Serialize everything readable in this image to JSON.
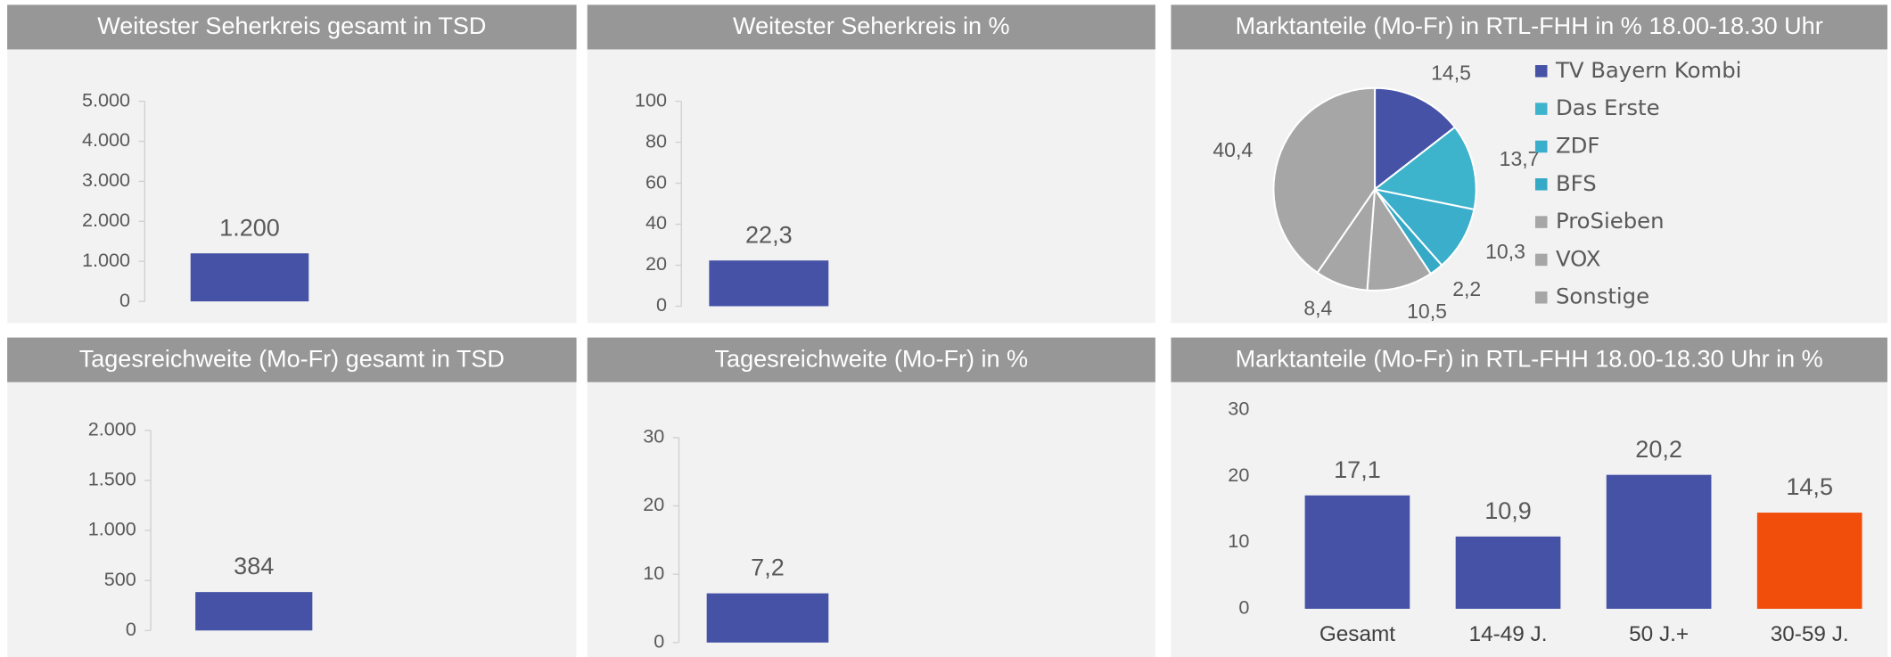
{
  "chart_data": [
    {
      "type": "bar",
      "title": "Weitester Seherkreis gesamt in TSD",
      "categories": [
        null
      ],
      "values": [
        1200
      ],
      "value_labels": [
        "1.200"
      ],
      "color": "#4652a6",
      "ylim": [
        0,
        5000
      ],
      "yticks": [
        0,
        {
          "value": 1000,
          "label": "1.000"
        },
        {
          "value": 2000,
          "label": "2.000"
        },
        {
          "value": 3000,
          "label": "3.000"
        },
        {
          "value": 4000,
          "label": "4.000"
        },
        {
          "value": 5000,
          "label": "5.000"
        }
      ]
    },
    {
      "type": "bar",
      "title": "Weitester Seherkreis in %",
      "categories": [
        null
      ],
      "values": [
        22.3
      ],
      "value_labels": [
        "22,3"
      ],
      "color": "#4652a6",
      "ylim": [
        0,
        100
      ],
      "yticks": [
        0,
        20,
        40,
        60,
        80,
        100
      ]
    },
    {
      "type": "pie",
      "title": "Marktanteile (Mo-Fr) in RTL-FHH in % 18.00-18.30 Uhr",
      "categories": [
        "TV Bayern Kombi",
        "Das Erste",
        "ZDF",
        "BFS",
        "ProSieben",
        "VOX",
        "Sonstige"
      ],
      "values": [
        14.5,
        13.7,
        10.3,
        2.2,
        10.5,
        8.4,
        40.4
      ],
      "value_labels": [
        "14,5",
        "13,7",
        "10,3",
        "2,2",
        "10,5",
        "8,4",
        "40,4"
      ],
      "colors": [
        "#4652a6",
        "#3eb3cc",
        "#3aaecb",
        "#35a9c6",
        "#a6a6a6",
        "#a6a6a6",
        "#a6a6a6"
      ]
    },
    {
      "type": "bar",
      "title": "Tagesreichweite (Mo-Fr) gesamt in TSD",
      "categories": [
        null
      ],
      "values": [
        384
      ],
      "color": "#4652a6",
      "ylim": [
        0,
        2000
      ],
      "yticks": [
        0,
        500,
        {
          "value": 1000,
          "label": "1.000"
        },
        {
          "value": 1500,
          "label": "1.500"
        },
        {
          "value": 2000,
          "label": "2.000"
        }
      ]
    },
    {
      "type": "bar",
      "title": "Tagesreichweite (Mo-Fr) in %",
      "categories": [
        null
      ],
      "values": [
        7.2
      ],
      "value_labels": [
        "7,2"
      ],
      "color": "#4652a6",
      "ylim": [
        0,
        30
      ],
      "yticks": [
        0,
        10,
        20,
        30
      ]
    },
    {
      "type": "bar",
      "title": "Marktanteile (Mo-Fr) in RTL-FHH 18.00-18.30 Uhr in %",
      "categories": [
        "Gesamt",
        "14-49 J.",
        "50 J.+",
        "30-59 J."
      ],
      "values": [
        17.1,
        10.9,
        20.2,
        14.5
      ],
      "value_labels": [
        "17,1",
        "10,9",
        "20,2",
        "14,5"
      ],
      "colors": [
        "#4652a6",
        "#4652a6",
        "#4652a6",
        "#f04e0a"
      ],
      "ylim": [
        0,
        30
      ],
      "yticks": [
        0,
        10,
        20,
        30
      ]
    }
  ]
}
